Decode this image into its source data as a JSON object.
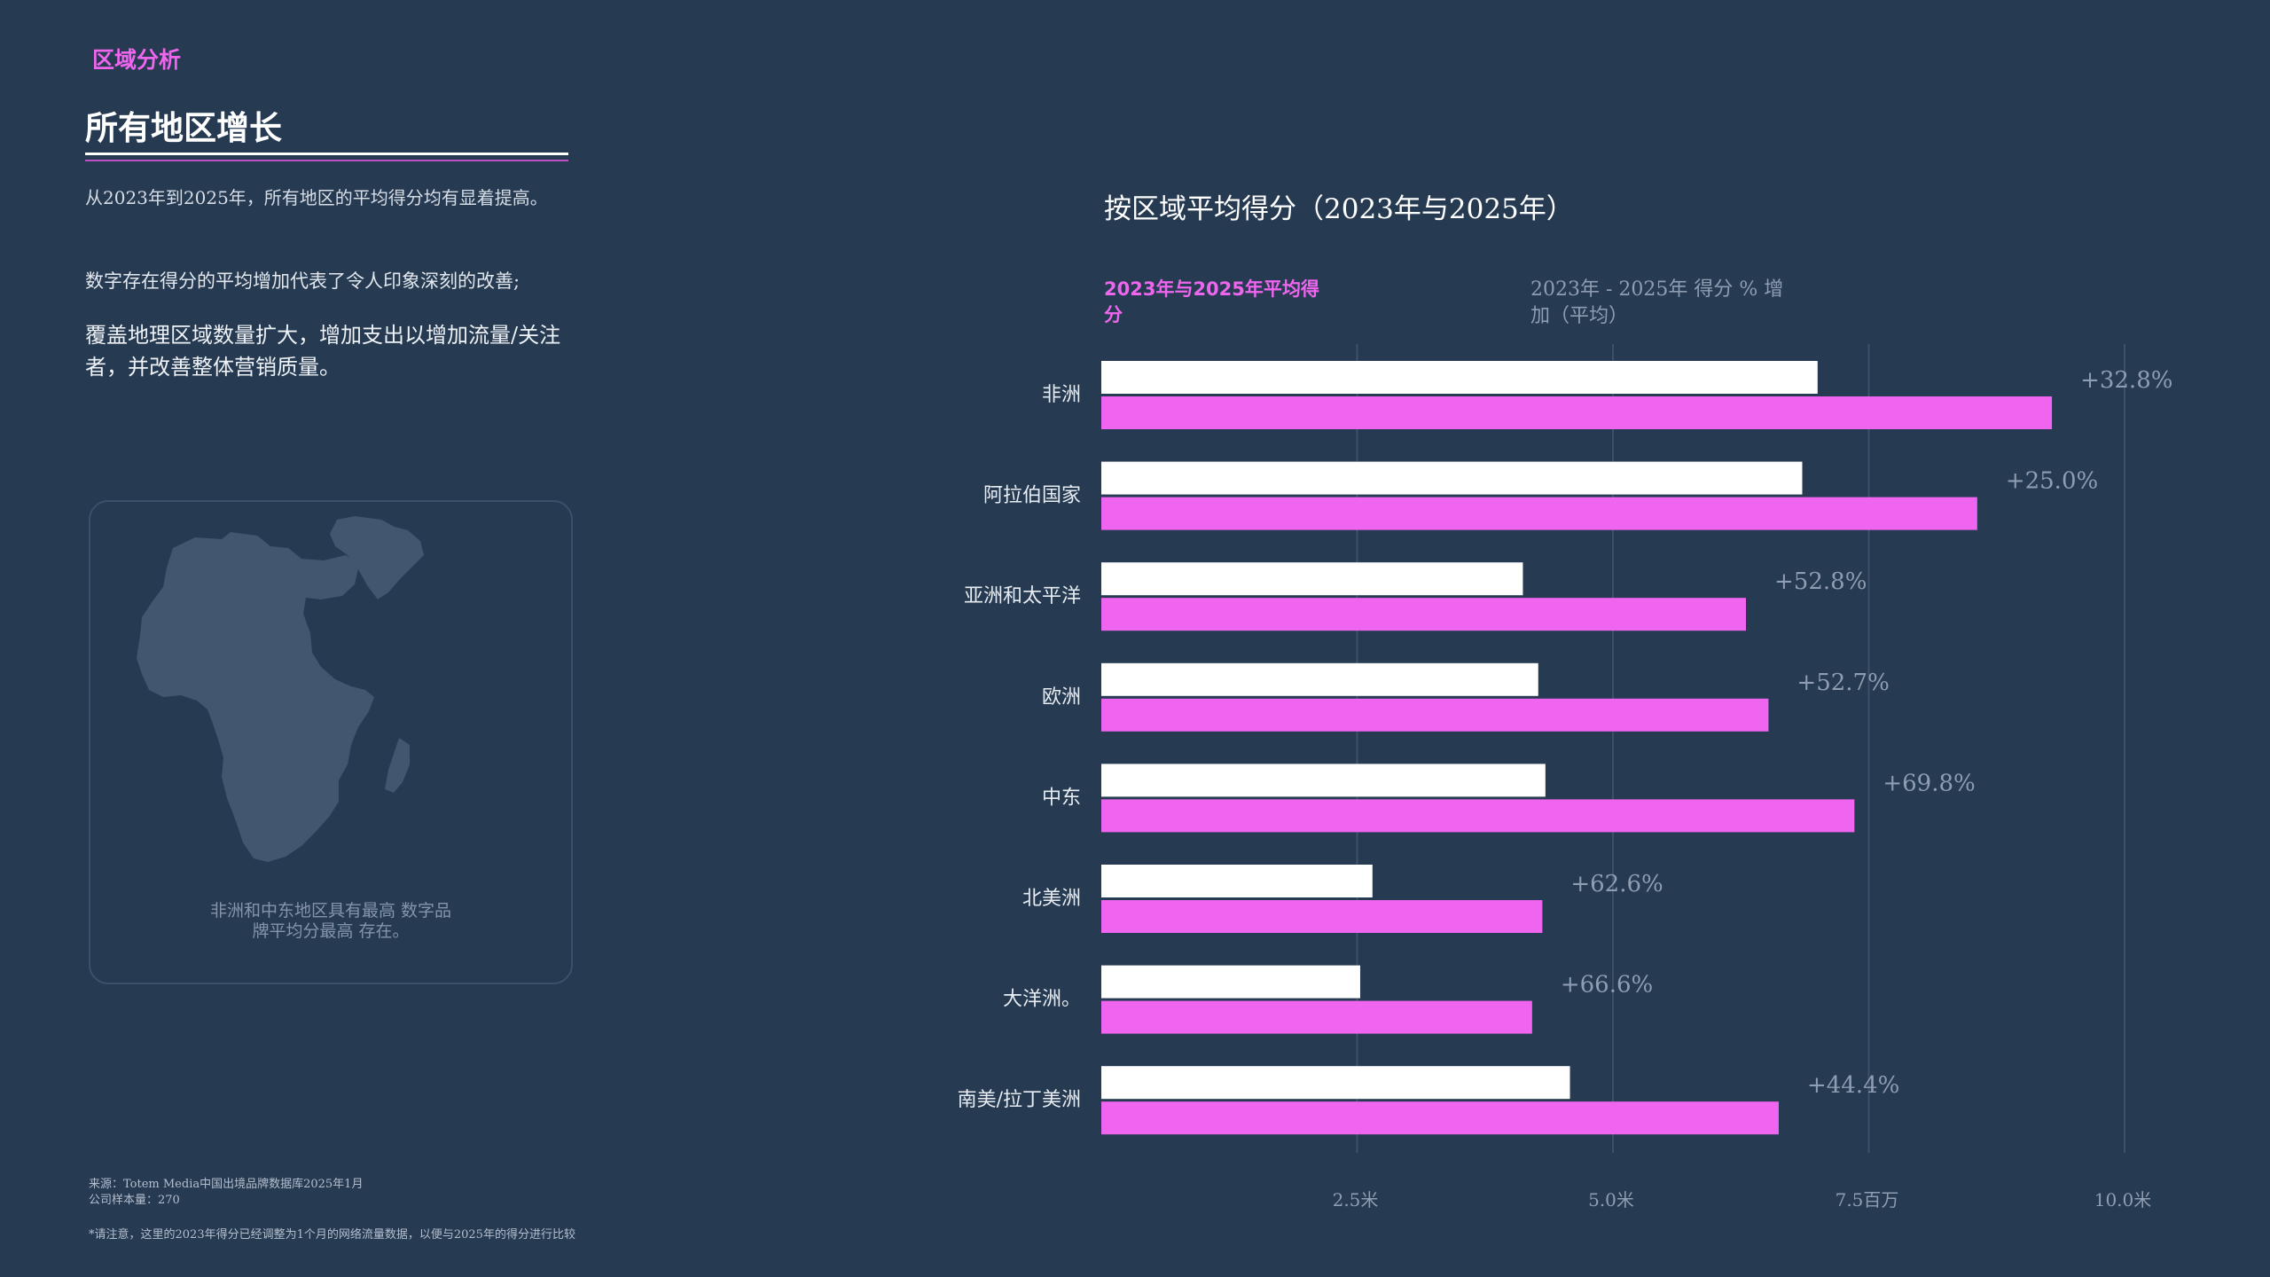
{
  "header": {
    "eyebrow": "区域分析",
    "title": "所有地区增长"
  },
  "intro": {
    "p1": "从2023年到2025年，所有地区的平均得分均有显着提高。",
    "p2": "数字存在得分的平均增加代表了令人印象深刻的改善;",
    "p3": "覆盖地理区域数量扩大，增加支出以增加流量/关注者，并改善整体营销质量。"
  },
  "map_card": {
    "icon": "africa-middle-east-map",
    "caption": "非洲和中东地区具有最高 数字品牌平均分最高 存在。"
  },
  "footnotes": {
    "source": "来源：Totem Media中国出境品牌数据库2025年1月",
    "sample": "公司样本量：270",
    "note": "*请注意，这里的2023年得分已经调整为1个月的网络流量数据，以便与2025年的得分进行比较"
  },
  "colors": {
    "background": "#263a52",
    "bar_2023": "#ffffff",
    "bar_2025": "#f065f0",
    "accent": "#ee66ee",
    "muted": "#8f9db0"
  },
  "chart_data": {
    "type": "bar",
    "orientation": "horizontal",
    "title": "按区域平均得分（2023年与2025年）",
    "legend_primary": "2023年与2025年平均得分",
    "legend_secondary": "2023年 - 2025年 得分 % 增加（平均）",
    "categories": [
      "非洲",
      "阿拉伯国家",
      "亚洲和太平洋",
      "欧洲",
      "中东",
      "北美洲",
      "大洋洲。",
      "南美/拉丁美洲"
    ],
    "series": [
      {
        "values": [
          7.0,
          6.85,
          4.12,
          4.27,
          4.34,
          2.65,
          2.53,
          4.58
        ]
      },
      {
        "values": [
          9.29,
          8.56,
          6.3,
          6.52,
          7.36,
          4.31,
          4.21,
          6.62
        ]
      }
    ],
    "pct_increase": [
      "+32.8%",
      "+25.0%",
      "+52.8%",
      "+52.7%",
      "+69.8%",
      "+62.6%",
      "+66.6%",
      "+44.4%"
    ],
    "xlim": [
      0,
      10
    ],
    "ticks": [
      2.5,
      5.0,
      7.5,
      10.0
    ],
    "tick_labels": [
      "2.5米",
      "5.0米",
      "7.5百万",
      "10.0米"
    ],
    "grid": true
  }
}
